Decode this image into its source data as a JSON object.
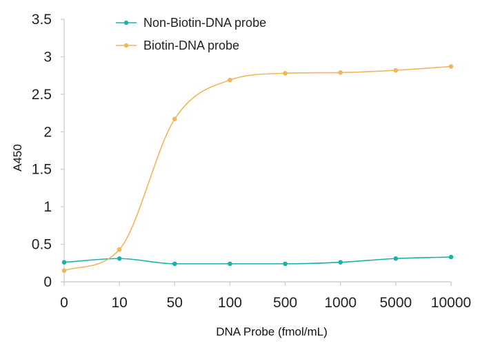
{
  "chart_data": {
    "type": "line",
    "title": "",
    "xlabel": "DNA Probe (fmol/mL)",
    "ylabel": "A450",
    "categories": [
      "0",
      "10",
      "50",
      "100",
      "500",
      "1000",
      "5000",
      "10000"
    ],
    "ylim": [
      0,
      3.5
    ],
    "yticks": [
      "0",
      "0.5",
      "1",
      "1.5",
      "2",
      "2.5",
      "3",
      "3.5"
    ],
    "grid": false,
    "legend_position": "top-center",
    "smooth": true,
    "series": [
      {
        "name": "Non-Biotin-DNA probe",
        "color": "#19b3ac",
        "values": [
          0.26,
          0.31,
          0.24,
          0.24,
          0.24,
          0.26,
          0.31,
          0.33
        ]
      },
      {
        "name": "Biotin-DNA probe",
        "color": "#f1b65a",
        "values": [
          0.15,
          0.43,
          2.17,
          2.69,
          2.78,
          2.79,
          2.82,
          2.87
        ]
      }
    ]
  }
}
